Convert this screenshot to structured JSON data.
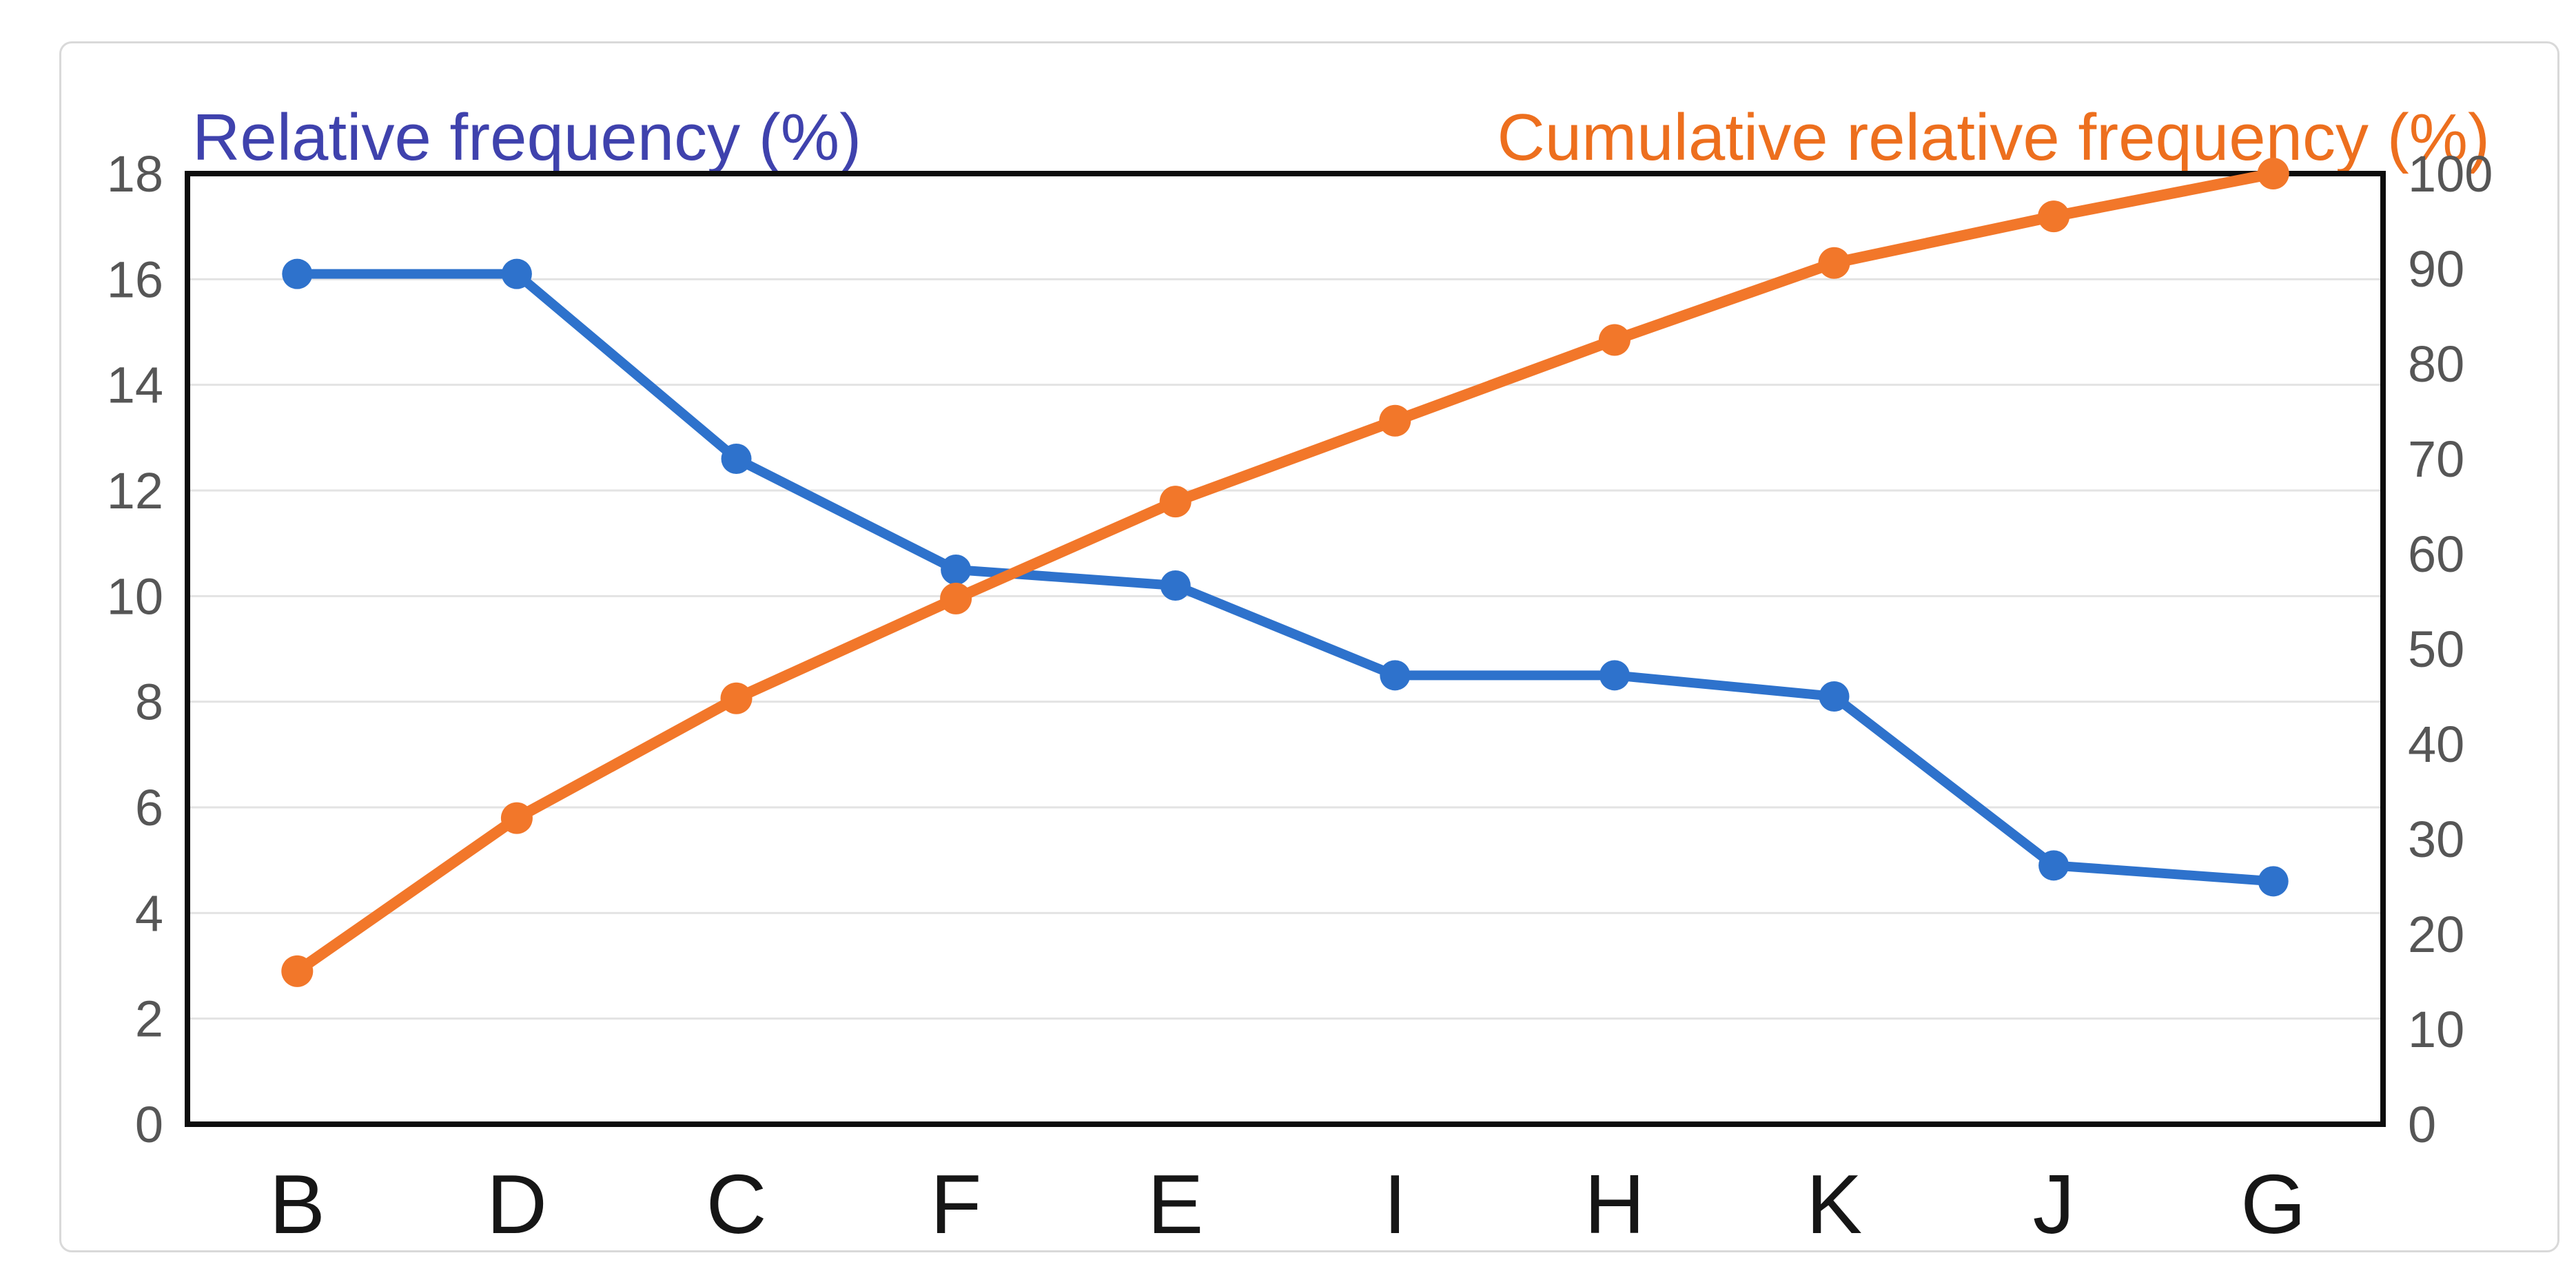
{
  "page": {
    "background": "#ffffff",
    "card_border_color": "#d9d9d9"
  },
  "titles": {
    "left": {
      "text": "Relative frequency (%)",
      "color": "#3f42ad"
    },
    "right": {
      "text": "Cumulative relative frequency (%)",
      "color": "#ed6f1e"
    }
  },
  "chart_data": {
    "type": "line",
    "dual_axis": true,
    "grid": "horizontal",
    "legend_position": "axis-titles-top-corners",
    "categories": [
      "B",
      "D",
      "C",
      "F",
      "E",
      "I",
      "H",
      "K",
      "J",
      "G"
    ],
    "series": [
      {
        "name": "Relative frequency (%)",
        "axis": "left",
        "color": "#2e72cc",
        "marker": "circle",
        "values": [
          16.1,
          16.1,
          12.6,
          10.5,
          10.2,
          8.5,
          8.5,
          8.1,
          4.9,
          4.6
        ]
      },
      {
        "name": "Cumulative relative frequency (%)",
        "axis": "right",
        "color": "#f2772a",
        "marker": "circle",
        "values": [
          16.1,
          32.2,
          44.8,
          55.3,
          65.5,
          74.0,
          82.5,
          90.6,
          95.5,
          100
        ]
      }
    ],
    "y_left": {
      "label": "Relative frequency (%)",
      "min": 0,
      "max": 18,
      "ticks": [
        0,
        2,
        4,
        6,
        8,
        10,
        12,
        14,
        16,
        18
      ]
    },
    "y_right": {
      "label": "Cumulative relative frequency (%)",
      "min": 0,
      "max": 100,
      "ticks": [
        0,
        10,
        20,
        30,
        40,
        50,
        60,
        70,
        80,
        90,
        100
      ]
    }
  },
  "axis_style": {
    "tick_label_color": "#565656",
    "category_label_color": "#161616",
    "gridline_color": "#e3e3e3",
    "frame_color": "#0d0d0d"
  }
}
